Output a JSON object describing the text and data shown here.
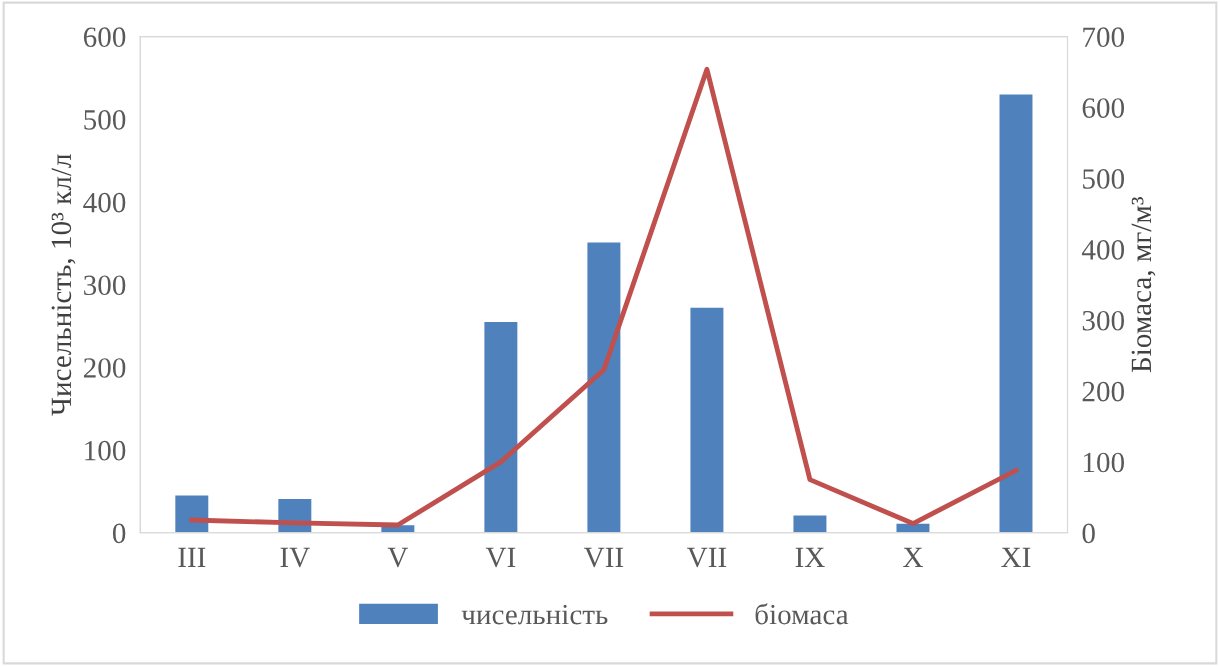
{
  "chart_data": {
    "type": "bar",
    "ylabel": "Чисельність, 10³ кл/л",
    "y2label": "Біомаса, мг/м³",
    "categories": [
      "III",
      "IV",
      "V",
      "VI",
      "VII",
      "VII",
      "IX",
      "X",
      "XI"
    ],
    "series": [
      {
        "name": "чисельність",
        "color": "#4f81bd",
        "values": [
          45,
          41,
          9,
          255,
          351,
          272,
          21,
          11,
          530
        ]
      },
      {
        "name": "біомаса",
        "type": "line",
        "axis": "y2",
        "color": "#c0504d",
        "values": [
          18,
          14,
          11,
          100,
          230,
          654,
          75,
          13,
          88
        ]
      }
    ],
    "ylim": [
      0,
      600
    ],
    "yticks": [
      0,
      100,
      200,
      300,
      400,
      500,
      600
    ],
    "y2lim": [
      0,
      700
    ],
    "y2ticks": [
      0,
      100,
      200,
      300,
      400,
      500,
      600,
      700
    ],
    "grid": false,
    "legend": "bottom",
    "marker": "none",
    "line_style": "solid"
  }
}
